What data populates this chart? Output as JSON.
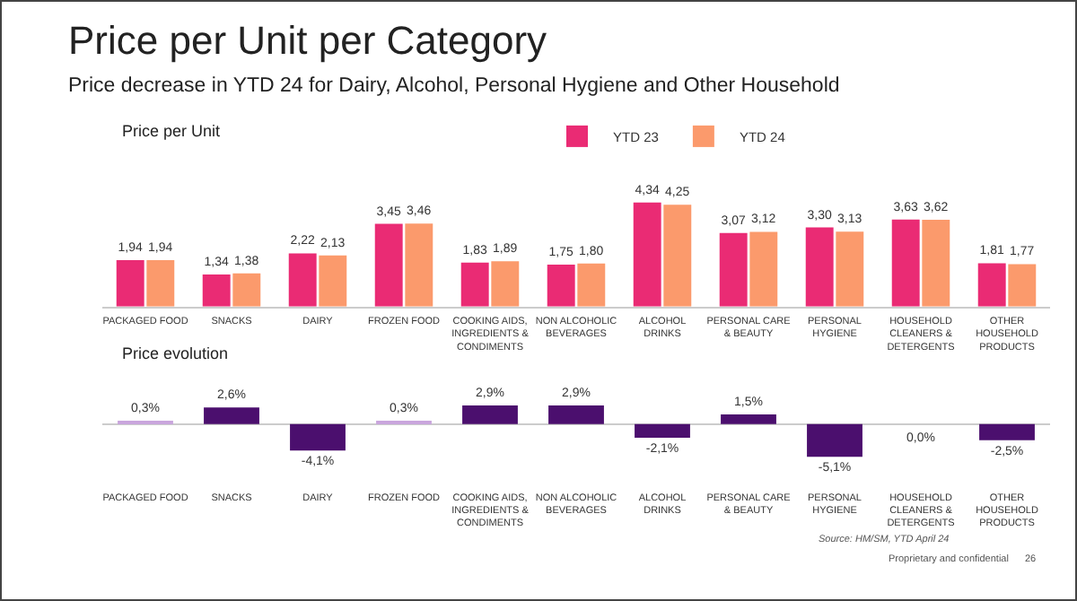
{
  "chart_data": [
    {
      "type": "bar",
      "title": "Price per Unit per Category",
      "subtitle": "Price decrease in YTD 24 for Dairy, Alcohol, Personal Hygiene and Other Household",
      "ylabel": "Price per Unit",
      "categories": [
        "PACKAGED FOOD",
        "SNACKS",
        "DAIRY",
        "FROZEN FOOD",
        "COOKING AIDS, INGREDIENTS & CONDIMENTS",
        "NON ALCOHOLIC BEVERAGES",
        "ALCOHOL DRINKS",
        "PERSONAL CARE & BEAUTY",
        "PERSONAL HYGIENE",
        "HOUSEHOLD CLEANERS & DETERGENTS",
        "OTHER HOUSEHOLD PRODUCTS"
      ],
      "series": [
        {
          "name": "YTD 23",
          "color": "#ea2b74",
          "values": [
            1.94,
            1.34,
            2.22,
            3.45,
            1.83,
            1.75,
            4.34,
            3.07,
            3.3,
            3.63,
            1.81
          ],
          "value_labels": [
            "1,94",
            "1,34",
            "2,22",
            "3,45",
            "1,83",
            "1,75",
            "4,34",
            "3,07",
            "3,30",
            "3,63",
            "1,81"
          ]
        },
        {
          "name": "YTD 24",
          "color": "#fb9a6c",
          "values": [
            1.94,
            1.38,
            2.13,
            3.46,
            1.89,
            1.8,
            4.25,
            3.12,
            3.13,
            3.62,
            1.77
          ],
          "value_labels": [
            "1,94",
            "1,38",
            "2,13",
            "3,46",
            "1,89",
            "1,80",
            "4,25",
            "3,12",
            "3,13",
            "3,62",
            "1,77"
          ]
        }
      ],
      "legend": "top"
    },
    {
      "type": "bar",
      "ylabel": "Price evolution",
      "categories": [
        "PACKAGED FOOD",
        "SNACKS",
        "DAIRY",
        "FROZEN FOOD",
        "COOKING AIDS, INGREDIENTS & CONDIMENTS",
        "NON ALCOHOLIC BEVERAGES",
        "ALCOHOL DRINKS",
        "PERSONAL CARE & BEAUTY",
        "PERSONAL HYGIENE",
        "HOUSEHOLD CLEANERS & DETERGENTS",
        "OTHER HOUSEHOLD PRODUCTS"
      ],
      "values": [
        0.3,
        2.6,
        -4.1,
        0.3,
        2.9,
        2.9,
        -2.1,
        1.5,
        -5.1,
        0.0,
        -2.5
      ],
      "value_labels": [
        "0,3%",
        "2,6%",
        "-4,1%",
        "0,3%",
        "2,9%",
        "2,9%",
        "-2,1%",
        "1,5%",
        "-5,1%",
        "0,0%",
        "-2,5%"
      ],
      "colors": [
        "#c9a6dd",
        "#4b0f6e",
        "#4b0f6e",
        "#c9a6dd",
        "#4b0f6e",
        "#4b0f6e",
        "#4b0f6e",
        "#4b0f6e",
        "#4b0f6e",
        "#4b0f6e",
        "#4b0f6e"
      ],
      "annotations": [
        "Source: HM/SM, YTD April 24",
        "Proprietary and confidential",
        "26"
      ]
    }
  ]
}
